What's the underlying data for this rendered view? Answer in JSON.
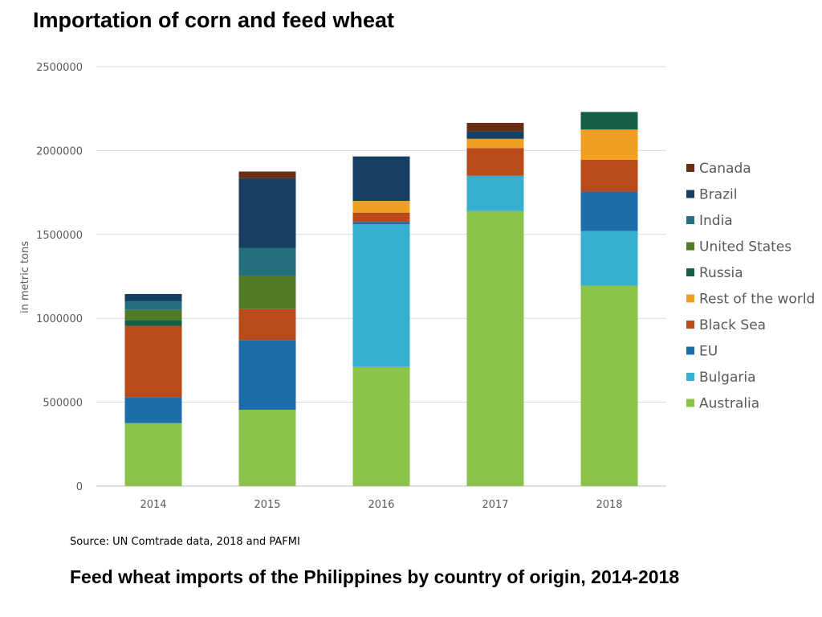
{
  "page_title": "Importation of corn and feed wheat",
  "source": "Source: UN Comtrade data, 2018 and PAFMI",
  "caption": "Feed wheat imports of the Philippines by country of origin, 2014-2018",
  "chart_data": {
    "type": "bar",
    "stacked": true,
    "ylabel": "in metric tons",
    "ylim": [
      0,
      2500000
    ],
    "yticks": [
      "0",
      "500000",
      "1000000",
      "1500000",
      "2000000",
      "2500000"
    ],
    "categories": [
      "2014",
      "2015",
      "2016",
      "2017",
      "2018"
    ],
    "legend_position": "right",
    "grid": true,
    "series": [
      {
        "name": "Australia",
        "color": "#8BC34A",
        "values": [
          375000,
          455000,
          710000,
          1640000,
          1195000
        ]
      },
      {
        "name": "Bulgaria",
        "color": "#35AECF",
        "values": [
          0,
          0,
          850000,
          210000,
          325000
        ]
      },
      {
        "name": "EU",
        "color": "#1F6DA8",
        "values": [
          155000,
          415000,
          15000,
          0,
          235000
        ]
      },
      {
        "name": "Black Sea",
        "color": "#B94A1A",
        "values": [
          425000,
          185000,
          55000,
          165000,
          190000
        ]
      },
      {
        "name": "Rest of the world",
        "color": "#F0A020",
        "values": [
          0,
          0,
          70000,
          55000,
          180000
        ]
      },
      {
        "name": "Russia",
        "color": "#165E45",
        "values": [
          35000,
          0,
          0,
          0,
          105000
        ]
      },
      {
        "name": "United States",
        "color": "#527B28",
        "values": [
          60000,
          200000,
          0,
          0,
          0
        ]
      },
      {
        "name": "India",
        "color": "#246F7F",
        "values": [
          50000,
          165000,
          0,
          0,
          0
        ]
      },
      {
        "name": "Brazil",
        "color": "#163F63",
        "values": [
          45000,
          415000,
          265000,
          45000,
          0
        ]
      },
      {
        "name": "Canada",
        "color": "#6B2E14",
        "values": [
          0,
          40000,
          0,
          50000,
          0
        ]
      }
    ]
  }
}
